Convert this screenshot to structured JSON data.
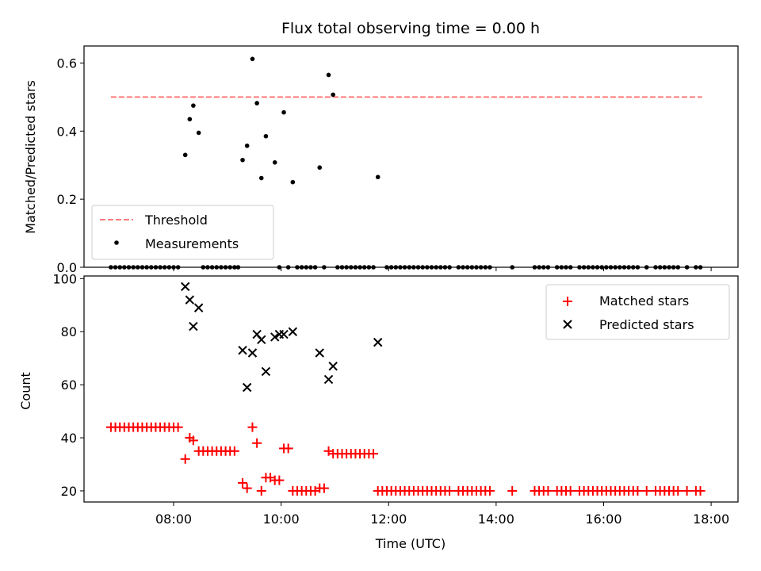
{
  "chart_data": [
    {
      "type": "scatter",
      "title": "Flux total observing time = 0.00 h",
      "xlabel": "",
      "ylabel": "Matched/Predicted stars",
      "ylim": [
        0,
        0.65
      ],
      "xlim": [
        "06:20",
        "18:30"
      ],
      "yticks": [
        "0.0",
        "0.2",
        "0.4",
        "0.6"
      ],
      "legend_position": "lower-left",
      "grid": false,
      "threshold": {
        "name": "Threshold",
        "value": 0.5,
        "x_start": "06:50",
        "x_end": "17:50",
        "color": "#ff7b7b"
      },
      "measurements": {
        "name": "Measurements",
        "color": "#000000",
        "points": [
          [
            "08:13",
            0.33
          ],
          [
            "08:18",
            0.435
          ],
          [
            "08:22",
            0.475
          ],
          [
            "08:28",
            0.395
          ],
          [
            "09:17",
            0.315
          ],
          [
            "09:22",
            0.357
          ],
          [
            "09:28",
            0.612
          ],
          [
            "09:33",
            0.482
          ],
          [
            "09:38",
            0.262
          ],
          [
            "09:43",
            0.385
          ],
          [
            "09:53",
            0.308
          ],
          [
            "10:03",
            0.455
          ],
          [
            "10:13",
            0.25
          ],
          [
            "10:43",
            0.293
          ],
          [
            "10:53",
            0.565
          ],
          [
            "10:58",
            0.507
          ],
          [
            "11:48",
            0.265
          ]
        ],
        "zero_points": [
          "06:50",
          "06:55",
          "07:00",
          "07:05",
          "07:10",
          "07:15",
          "07:20",
          "07:25",
          "07:30",
          "07:35",
          "07:40",
          "07:45",
          "07:50",
          "07:55",
          "08:00",
          "08:05",
          "08:33",
          "08:38",
          "08:43",
          "08:48",
          "08:53",
          "08:58",
          "09:03",
          "09:08",
          "09:12",
          "09:58",
          "10:08",
          "10:18",
          "10:23",
          "10:28",
          "10:33",
          "10:38",
          "10:48",
          "11:03",
          "11:08",
          "11:13",
          "11:18",
          "11:23",
          "11:28",
          "11:33",
          "11:38",
          "11:43",
          "11:58",
          "12:03",
          "12:08",
          "12:13",
          "12:18",
          "12:23",
          "12:28",
          "12:33",
          "12:38",
          "12:43",
          "12:48",
          "12:53",
          "12:58",
          "13:03",
          "13:08",
          "13:18",
          "13:23",
          "13:28",
          "13:33",
          "13:38",
          "13:43",
          "13:48",
          "13:53",
          "14:18",
          "14:43",
          "14:48",
          "14:53",
          "14:58",
          "15:08",
          "15:13",
          "15:18",
          "15:23",
          "15:33",
          "15:38",
          "15:43",
          "15:48",
          "15:53",
          "15:58",
          "16:03",
          "16:08",
          "16:13",
          "16:18",
          "16:23",
          "16:28",
          "16:33",
          "16:38",
          "16:48",
          "16:58",
          "17:03",
          "17:08",
          "17:13",
          "17:18",
          "17:23",
          "17:33",
          "17:43",
          "17:48"
        ]
      }
    },
    {
      "type": "scatter",
      "title": "",
      "xlabel": "Time (UTC)",
      "ylabel": "Count",
      "ylim": [
        15.8,
        101
      ],
      "xlim": [
        "06:20",
        "18:30"
      ],
      "xticks": [
        "08:00",
        "10:00",
        "12:00",
        "14:00",
        "16:00",
        "18:00"
      ],
      "yticks": [
        "20",
        "40",
        "60",
        "80",
        "100"
      ],
      "legend_position": "upper-right",
      "grid": false,
      "series": [
        {
          "name": "Matched stars",
          "marker": "plus",
          "color": "#ff0000",
          "points": [
            [
              "06:50",
              44
            ],
            [
              "06:55",
              44
            ],
            [
              "07:00",
              44
            ],
            [
              "07:05",
              44
            ],
            [
              "07:10",
              44
            ],
            [
              "07:15",
              44
            ],
            [
              "07:20",
              44
            ],
            [
              "07:25",
              44
            ],
            [
              "07:30",
              44
            ],
            [
              "07:35",
              44
            ],
            [
              "07:40",
              44
            ],
            [
              "07:45",
              44
            ],
            [
              "07:50",
              44
            ],
            [
              "07:55",
              44
            ],
            [
              "08:00",
              44
            ],
            [
              "08:05",
              44
            ],
            [
              "08:13",
              32
            ],
            [
              "08:18",
              40
            ],
            [
              "08:22",
              39
            ],
            [
              "08:28",
              35
            ],
            [
              "08:33",
              35
            ],
            [
              "08:38",
              35
            ],
            [
              "08:43",
              35
            ],
            [
              "08:48",
              35
            ],
            [
              "08:53",
              35
            ],
            [
              "08:58",
              35
            ],
            [
              "09:03",
              35
            ],
            [
              "09:08",
              35
            ],
            [
              "09:17",
              23
            ],
            [
              "09:22",
              21
            ],
            [
              "09:28",
              44
            ],
            [
              "09:33",
              38
            ],
            [
              "09:38",
              20
            ],
            [
              "09:43",
              25
            ],
            [
              "09:48",
              25
            ],
            [
              "09:53",
              24
            ],
            [
              "09:58",
              24
            ],
            [
              "10:03",
              36
            ],
            [
              "10:08",
              36
            ],
            [
              "10:13",
              20
            ],
            [
              "10:18",
              20
            ],
            [
              "10:23",
              20
            ],
            [
              "10:28",
              20
            ],
            [
              "10:33",
              20
            ],
            [
              "10:38",
              20
            ],
            [
              "10:43",
              21
            ],
            [
              "10:48",
              21
            ],
            [
              "10:53",
              35
            ],
            [
              "10:58",
              34
            ],
            [
              "11:03",
              34
            ],
            [
              "11:08",
              34
            ],
            [
              "11:13",
              34
            ],
            [
              "11:18",
              34
            ],
            [
              "11:23",
              34
            ],
            [
              "11:28",
              34
            ],
            [
              "11:33",
              34
            ],
            [
              "11:38",
              34
            ],
            [
              "11:43",
              34
            ],
            [
              "11:48",
              20
            ],
            [
              "11:53",
              20
            ],
            [
              "11:58",
              20
            ],
            [
              "12:03",
              20
            ],
            [
              "12:08",
              20
            ],
            [
              "12:13",
              20
            ],
            [
              "12:18",
              20
            ],
            [
              "12:23",
              20
            ],
            [
              "12:28",
              20
            ],
            [
              "12:33",
              20
            ],
            [
              "12:38",
              20
            ],
            [
              "12:43",
              20
            ],
            [
              "12:48",
              20
            ],
            [
              "12:53",
              20
            ],
            [
              "12:58",
              20
            ],
            [
              "13:03",
              20
            ],
            [
              "13:08",
              20
            ],
            [
              "13:18",
              20
            ],
            [
              "13:23",
              20
            ],
            [
              "13:28",
              20
            ],
            [
              "13:33",
              20
            ],
            [
              "13:38",
              20
            ],
            [
              "13:43",
              20
            ],
            [
              "13:48",
              20
            ],
            [
              "13:53",
              20
            ],
            [
              "14:18",
              20
            ],
            [
              "14:43",
              20
            ],
            [
              "14:48",
              20
            ],
            [
              "14:53",
              20
            ],
            [
              "14:58",
              20
            ],
            [
              "15:08",
              20
            ],
            [
              "15:13",
              20
            ],
            [
              "15:18",
              20
            ],
            [
              "15:23",
              20
            ],
            [
              "15:33",
              20
            ],
            [
              "15:38",
              20
            ],
            [
              "15:43",
              20
            ],
            [
              "15:48",
              20
            ],
            [
              "15:53",
              20
            ],
            [
              "15:58",
              20
            ],
            [
              "16:03",
              20
            ],
            [
              "16:08",
              20
            ],
            [
              "16:13",
              20
            ],
            [
              "16:18",
              20
            ],
            [
              "16:23",
              20
            ],
            [
              "16:28",
              20
            ],
            [
              "16:33",
              20
            ],
            [
              "16:38",
              20
            ],
            [
              "16:48",
              20
            ],
            [
              "16:58",
              20
            ],
            [
              "17:03",
              20
            ],
            [
              "17:08",
              20
            ],
            [
              "17:13",
              20
            ],
            [
              "17:18",
              20
            ],
            [
              "17:23",
              20
            ],
            [
              "17:33",
              20
            ],
            [
              "17:43",
              20
            ],
            [
              "17:48",
              20
            ]
          ]
        },
        {
          "name": "Predicted stars",
          "marker": "x",
          "color": "#000000",
          "points": [
            [
              "08:13",
              97
            ],
            [
              "08:18",
              92
            ],
            [
              "08:22",
              82
            ],
            [
              "08:28",
              89
            ],
            [
              "09:17",
              73
            ],
            [
              "09:22",
              59
            ],
            [
              "09:28",
              72
            ],
            [
              "09:33",
              79
            ],
            [
              "09:38",
              77
            ],
            [
              "09:43",
              65
            ],
            [
              "09:53",
              78
            ],
            [
              "09:58",
              79
            ],
            [
              "10:03",
              79
            ],
            [
              "10:13",
              80
            ],
            [
              "10:43",
              72
            ],
            [
              "10:53",
              62
            ],
            [
              "10:58",
              67
            ],
            [
              "11:48",
              76
            ]
          ]
        }
      ]
    }
  ]
}
